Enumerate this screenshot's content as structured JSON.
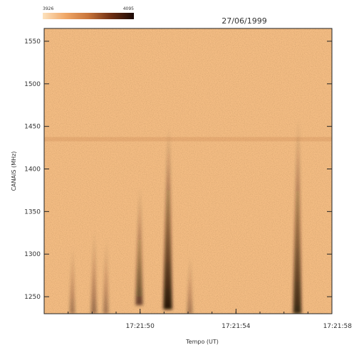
{
  "chart_data": {
    "type": "heatmap",
    "date": "27/06/1999",
    "xlabel": "Tempo (UT)",
    "ylabel": "CANAIS (MHz)",
    "x_ticks": [
      "17:21:50",
      "17:21:54",
      "17:21:58"
    ],
    "x_tick_seconds": [
      50,
      54,
      58
    ],
    "xlim_seconds": [
      46,
      58
    ],
    "y_ticks": [
      1250,
      1300,
      1350,
      1400,
      1450,
      1500,
      1550
    ],
    "ylim": [
      1230,
      1565
    ],
    "colorbar": {
      "min_label": "3926",
      "max_label": "4095",
      "colors": [
        "#fde2bd",
        "#f0a767",
        "#c8743a",
        "#6e2e12",
        "#1a0905"
      ]
    },
    "background_color": "#f3bc83",
    "features": [
      {
        "type": "band",
        "freq_mhz": 1435,
        "intensity": 0.18
      },
      {
        "type": "burst",
        "t_seconds": 47.2,
        "f_low": 1230,
        "f_high": 1310,
        "intensity": 0.35
      },
      {
        "type": "burst",
        "t_seconds": 48.1,
        "f_low": 1230,
        "f_high": 1330,
        "intensity": 0.4
      },
      {
        "type": "burst",
        "t_seconds": 48.6,
        "f_low": 1230,
        "f_high": 1320,
        "intensity": 0.35
      },
      {
        "type": "burst",
        "t_seconds": 50.0,
        "f_low": 1240,
        "f_high": 1380,
        "intensity": 0.65
      },
      {
        "type": "burst",
        "t_seconds": 51.2,
        "f_low": 1235,
        "f_high": 1450,
        "intensity": 0.95
      },
      {
        "type": "burst",
        "t_seconds": 52.1,
        "f_low": 1230,
        "f_high": 1300,
        "intensity": 0.35
      },
      {
        "type": "burst",
        "t_seconds": 56.6,
        "f_low": 1230,
        "f_high": 1460,
        "intensity": 0.85
      }
    ]
  }
}
